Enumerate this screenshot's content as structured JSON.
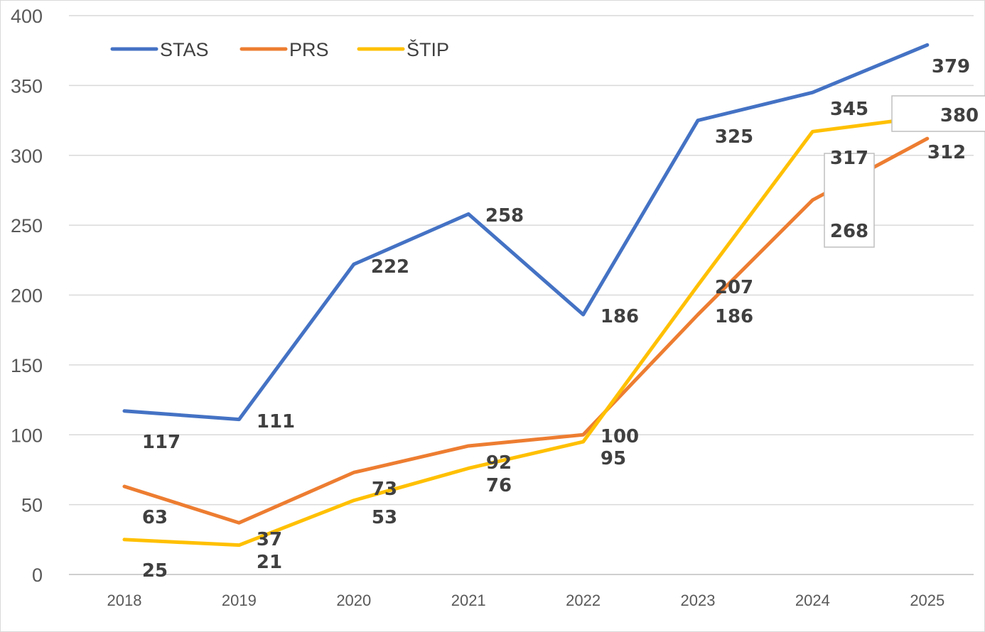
{
  "chart_data": {
    "type": "line",
    "title": "",
    "xlabel": "",
    "ylabel": "",
    "categories": [
      "2018",
      "2019",
      "2020",
      "2021",
      "2022",
      "2023",
      "2024",
      "2025"
    ],
    "ylim": [
      0,
      400
    ],
    "yticks": [
      "0",
      "50",
      "100",
      "150",
      "200",
      "250",
      "300",
      "350",
      "400"
    ],
    "grid": true,
    "legend_position": "top-left",
    "series": [
      {
        "name": "STAS",
        "color": "#4472C4",
        "values": [
          117,
          111,
          222,
          258,
          186,
          325,
          345,
          379
        ]
      },
      {
        "name": "PRS",
        "color": "#ED7D31",
        "values": [
          63,
          37,
          73,
          92,
          100,
          186,
          268,
          312
        ]
      },
      {
        "name": "ŠTIP",
        "color": "#FFC000",
        "values": [
          25,
          21,
          53,
          76,
          95,
          207,
          317,
          380
        ]
      }
    ]
  }
}
